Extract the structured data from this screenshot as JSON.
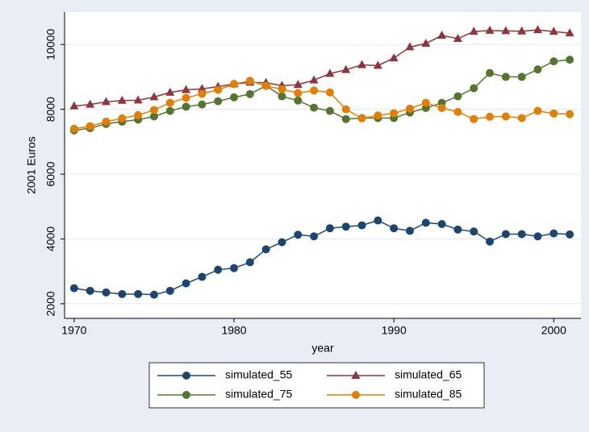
{
  "chart_data": {
    "type": "line",
    "x_label": "year",
    "y_label": "2001 Euros",
    "x": [
      1970,
      1971,
      1972,
      1973,
      1974,
      1975,
      1976,
      1977,
      1978,
      1979,
      1980,
      1981,
      1982,
      1983,
      1984,
      1985,
      1986,
      1987,
      1988,
      1989,
      1990,
      1991,
      1992,
      1993,
      1994,
      1995,
      1996,
      1997,
      1998,
      1999,
      2000,
      2001
    ],
    "series": [
      {
        "name": "simulated_55",
        "color": "#1a476f",
        "marker": "circle",
        "values": [
          2480,
          2400,
          2350,
          2300,
          2300,
          2280,
          2400,
          2630,
          2830,
          3050,
          3100,
          3280,
          3680,
          3900,
          4130,
          4080,
          4330,
          4380,
          4420,
          4570,
          4330,
          4250,
          4500,
          4460,
          4290,
          4230,
          3920,
          4150,
          4150,
          4080,
          4170,
          4140
        ]
      },
      {
        "name": "simulated_65",
        "color": "#90353b",
        "marker": "triangle",
        "values": [
          8100,
          8150,
          8230,
          8270,
          8280,
          8380,
          8520,
          8600,
          8630,
          8700,
          8780,
          8830,
          8820,
          8730,
          8760,
          8900,
          9100,
          9220,
          9370,
          9350,
          9580,
          9920,
          10030,
          10280,
          10180,
          10400,
          10430,
          10420,
          10410,
          10450,
          10400,
          10350
        ]
      },
      {
        "name": "simulated_75",
        "color": "#55752f",
        "marker": "circle",
        "values": [
          7350,
          7420,
          7550,
          7620,
          7680,
          7780,
          7950,
          8080,
          8150,
          8250,
          8370,
          8470,
          8730,
          8400,
          8270,
          8050,
          7950,
          7700,
          7730,
          7730,
          7730,
          7900,
          8040,
          8200,
          8400,
          8650,
          9120,
          9000,
          9000,
          9230,
          9480,
          9530
        ]
      },
      {
        "name": "simulated_85",
        "color": "#e37e00",
        "marker": "circle",
        "values": [
          7400,
          7480,
          7620,
          7720,
          7820,
          7980,
          8200,
          8350,
          8480,
          8600,
          8780,
          8880,
          8720,
          8620,
          8500,
          8580,
          8520,
          8000,
          7720,
          7810,
          7880,
          8020,
          8200,
          8040,
          7920,
          7700,
          7770,
          7780,
          7730,
          7950,
          7870,
          7850
        ]
      }
    ],
    "xlim": [
      1969.4,
      2001.7
    ],
    "xticks": [
      1970,
      1980,
      1990,
      2000
    ],
    "ylim": [
      1550,
      11000
    ],
    "yticks": [
      2000,
      4000,
      6000,
      8000,
      10000
    ],
    "grid": true,
    "legend_position": "bottom"
  }
}
